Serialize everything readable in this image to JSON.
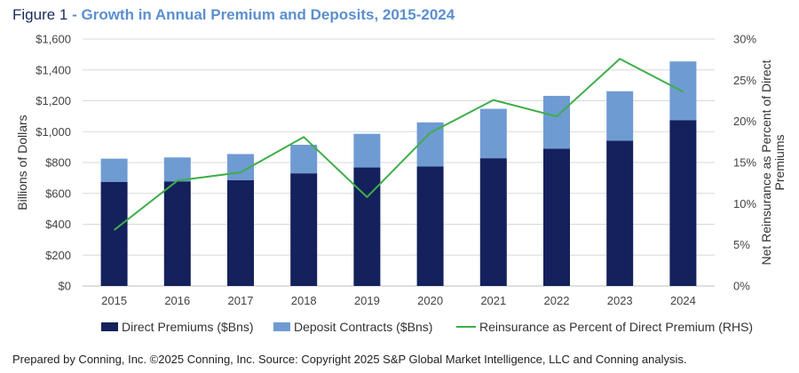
{
  "header": {
    "figure_label": "Figure 1",
    "separator": " - ",
    "title": "Growth in Annual Premium and Deposits, 2015-2024"
  },
  "colors": {
    "title_dark": "#1a2a5e",
    "title_accent": "#5b8fcf",
    "direct": "#14215c",
    "deposit": "#6f9bd3",
    "line": "#3fae49",
    "grid": "#d9d9d9"
  },
  "chart_data": {
    "type": "bar",
    "stacked": true,
    "categories": [
      "2015",
      "2016",
      "2017",
      "2018",
      "2019",
      "2020",
      "2021",
      "2022",
      "2023",
      "2024"
    ],
    "series": [
      {
        "name": "Direct Premiums ($Bns)",
        "type": "bar",
        "axis": "left",
        "values": [
          675,
          678,
          685,
          730,
          768,
          775,
          828,
          890,
          942,
          1075
        ]
      },
      {
        "name": "Deposit Contracts ($Bns)",
        "type": "bar",
        "axis": "left",
        "values": [
          150,
          155,
          170,
          185,
          218,
          285,
          320,
          342,
          320,
          380
        ]
      },
      {
        "name": "Reinsurance as Percent of Direct Premium (RHS)",
        "type": "line",
        "axis": "right",
        "values": [
          6.8,
          12.8,
          13.8,
          18.1,
          10.8,
          18.6,
          22.6,
          20.6,
          27.6,
          23.6
        ]
      }
    ],
    "ylabel": "Billions of Dollars",
    "ylabel_right": "Net Reinsurance as Percent of Direct Premiums",
    "ylim": [
      0,
      1600
    ],
    "ylim_right": [
      0,
      30
    ],
    "yticks": [
      "$0",
      "$200",
      "$400",
      "$600",
      "$800",
      "$1,000",
      "$1,200",
      "$1,400",
      "$1,600"
    ],
    "yticks_right": [
      "0%",
      "5%",
      "10%",
      "15%",
      "20%",
      "25%",
      "30%"
    ],
    "grid": true,
    "legend": "bottom"
  },
  "footer": {
    "source": "Prepared by Conning, Inc. ©2025 Conning, Inc. Source: Copyright 2025 S&P Global Market Intelligence, LLC and Conning analysis."
  }
}
